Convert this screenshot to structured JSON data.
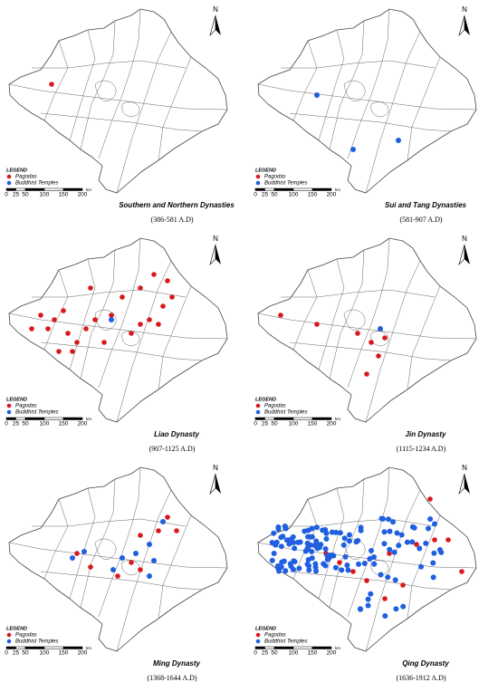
{
  "panels": [
    {
      "title": "Southern and Northern Dynasties",
      "dates": "(386-581 A.D)",
      "legend": {
        "title": "LEGEND",
        "items": [
          "Pagodas",
          "Buddhist Temples"
        ]
      },
      "scale": {
        "ticks": [
          "0",
          "25",
          "50",
          "100",
          "150",
          "200"
        ],
        "unit": "km"
      },
      "north": "N"
    },
    {
      "title": "Sui and Tang Dynasties",
      "dates": "(581-907 A.D)",
      "legend": {
        "title": "LEGEND",
        "items": [
          "Pagodas",
          "Buddhist Temples"
        ]
      },
      "scale": {
        "ticks": [
          "0",
          "25",
          "50",
          "100",
          "150",
          "200"
        ],
        "unit": "km"
      },
      "north": "N"
    },
    {
      "title": "Liao Dynasty",
      "dates": "(907-1125 A.D)",
      "legend": {
        "title": "LEGEND",
        "items": [
          "Pagodas",
          "Buddhist Temples"
        ]
      },
      "scale": {
        "ticks": [
          "0",
          "25",
          "50",
          "100",
          "150",
          "200"
        ],
        "unit": "km"
      },
      "north": "N"
    },
    {
      "title": "Jin Dynasty",
      "dates": "(1115-1234 A.D)",
      "legend": {
        "title": "LEGEND",
        "items": [
          "Pagodas",
          "Buddhist Temples"
        ]
      },
      "scale": {
        "ticks": [
          "0",
          "25",
          "50",
          "100",
          "150",
          "200"
        ],
        "unit": "km"
      },
      "north": "N"
    },
    {
      "title": "Ming Dynasty",
      "dates": "(1368-1644 A.D)",
      "legend": {
        "title": "LEGEND",
        "items": [
          "Pagodas",
          "Buddhist Temples"
        ]
      },
      "scale": {
        "ticks": [
          "0",
          "25",
          "50",
          "100",
          "150",
          "200"
        ],
        "unit": "km"
      },
      "north": "N"
    },
    {
      "title": "Qing Dynasty",
      "dates": "(1636-1912 A.D)",
      "legend": {
        "title": "LEGEND",
        "items": [
          "Pagodas",
          "Buddhist Temples"
        ]
      },
      "scale": {
        "ticks": [
          "0",
          "25",
          "50",
          "100",
          "150",
          "200"
        ],
        "unit": "km"
      },
      "north": "N"
    }
  ]
}
